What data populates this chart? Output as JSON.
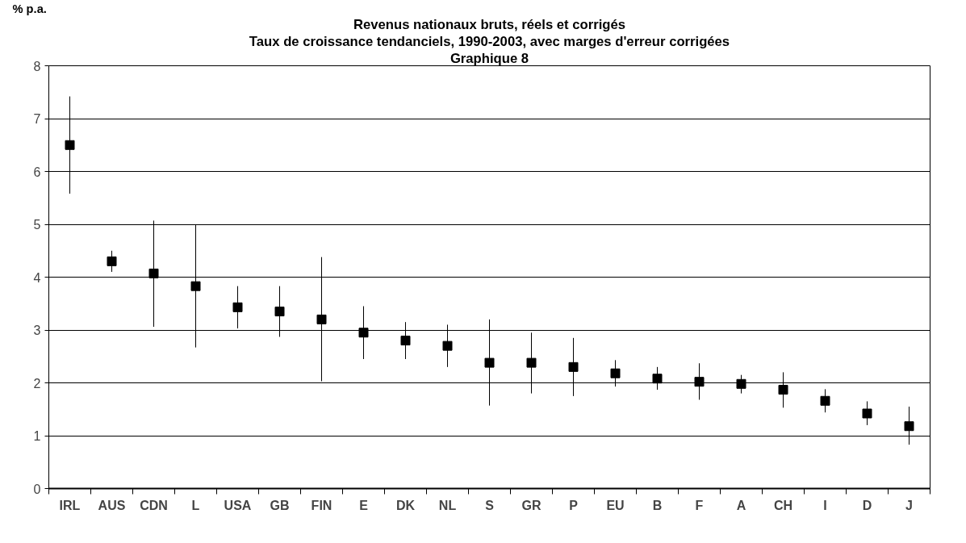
{
  "chart_data": {
    "type": "scatter",
    "title": "Revenus nationaux bruts, réels et corrigés",
    "subtitle": "Taux de croissance tendanciels, 1990-2003, avec marges d'erreur corrigées",
    "annotations": [
      "Graphique 8"
    ],
    "ylabel": "% p.a.",
    "categories": [
      "IRL",
      "AUS",
      "CDN",
      "L",
      "USA",
      "GB",
      "FIN",
      "E",
      "DK",
      "NL",
      "S",
      "GR",
      "P",
      "EU",
      "B",
      "F",
      "A",
      "CH",
      "I",
      "D",
      "J"
    ],
    "series": [
      {
        "color": "#000000",
        "values": [
          6.5,
          4.3,
          4.07,
          3.83,
          3.43,
          3.35,
          3.2,
          2.95,
          2.8,
          2.7,
          2.38,
          2.38,
          2.3,
          2.18,
          2.08,
          2.02,
          1.98,
          1.87,
          1.66,
          1.42,
          1.18
        ],
        "errors": [
          [
            5.58,
            7.42
          ],
          [
            4.1,
            4.5
          ],
          [
            3.06,
            5.07
          ],
          [
            2.67,
            5.0
          ],
          [
            3.03,
            3.83
          ],
          [
            2.87,
            3.83
          ],
          [
            2.03,
            4.38
          ],
          [
            2.45,
            3.45
          ],
          [
            2.45,
            3.15
          ],
          [
            2.3,
            3.1
          ],
          [
            1.57,
            3.2
          ],
          [
            1.8,
            2.95
          ],
          [
            1.75,
            2.85
          ],
          [
            1.93,
            2.43
          ],
          [
            1.87,
            2.3
          ],
          [
            1.68,
            2.37
          ],
          [
            1.8,
            2.15
          ],
          [
            1.53,
            2.2
          ],
          [
            1.44,
            1.88
          ],
          [
            1.2,
            1.65
          ],
          [
            0.83,
            1.55
          ]
        ]
      }
    ],
    "marker": "square",
    "ylim": [
      0,
      8
    ],
    "yticks": [
      0,
      1,
      2,
      3,
      4,
      5,
      6,
      7,
      8
    ],
    "grid": "y"
  }
}
